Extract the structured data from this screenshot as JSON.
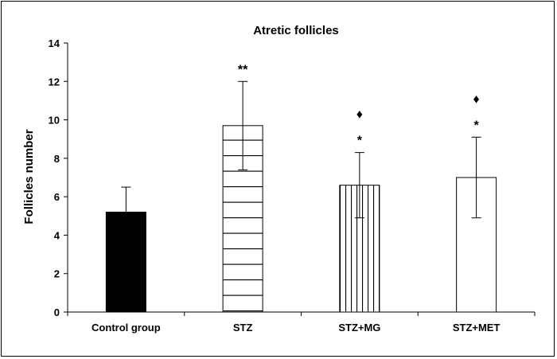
{
  "chart_data": {
    "type": "bar",
    "title": "Atretic follicles",
    "xlabel": "",
    "ylabel": "Follicles number",
    "ylim": [
      0,
      14
    ],
    "yticks": [
      "0",
      "2",
      "4",
      "6",
      "8",
      "10",
      "12",
      "14"
    ],
    "categories": [
      "Control group",
      "STZ",
      "STZ+MG",
      "STZ+MET"
    ],
    "values": [
      5.2,
      9.7,
      6.6,
      7.0
    ],
    "errors": [
      1.3,
      2.3,
      1.7,
      2.1
    ],
    "patterns": [
      "solid",
      "horizontal-lines",
      "vertical-lines",
      "empty"
    ],
    "annotations": [
      {
        "category": "STZ",
        "text": "**"
      },
      {
        "category": "STZ+MG",
        "text": "*"
      },
      {
        "category": "STZ+MG",
        "text": "♦"
      },
      {
        "category": "STZ+MET",
        "text": "*"
      },
      {
        "category": "STZ+MET",
        "text": "♦"
      }
    ],
    "grid": false,
    "legend": "none"
  }
}
